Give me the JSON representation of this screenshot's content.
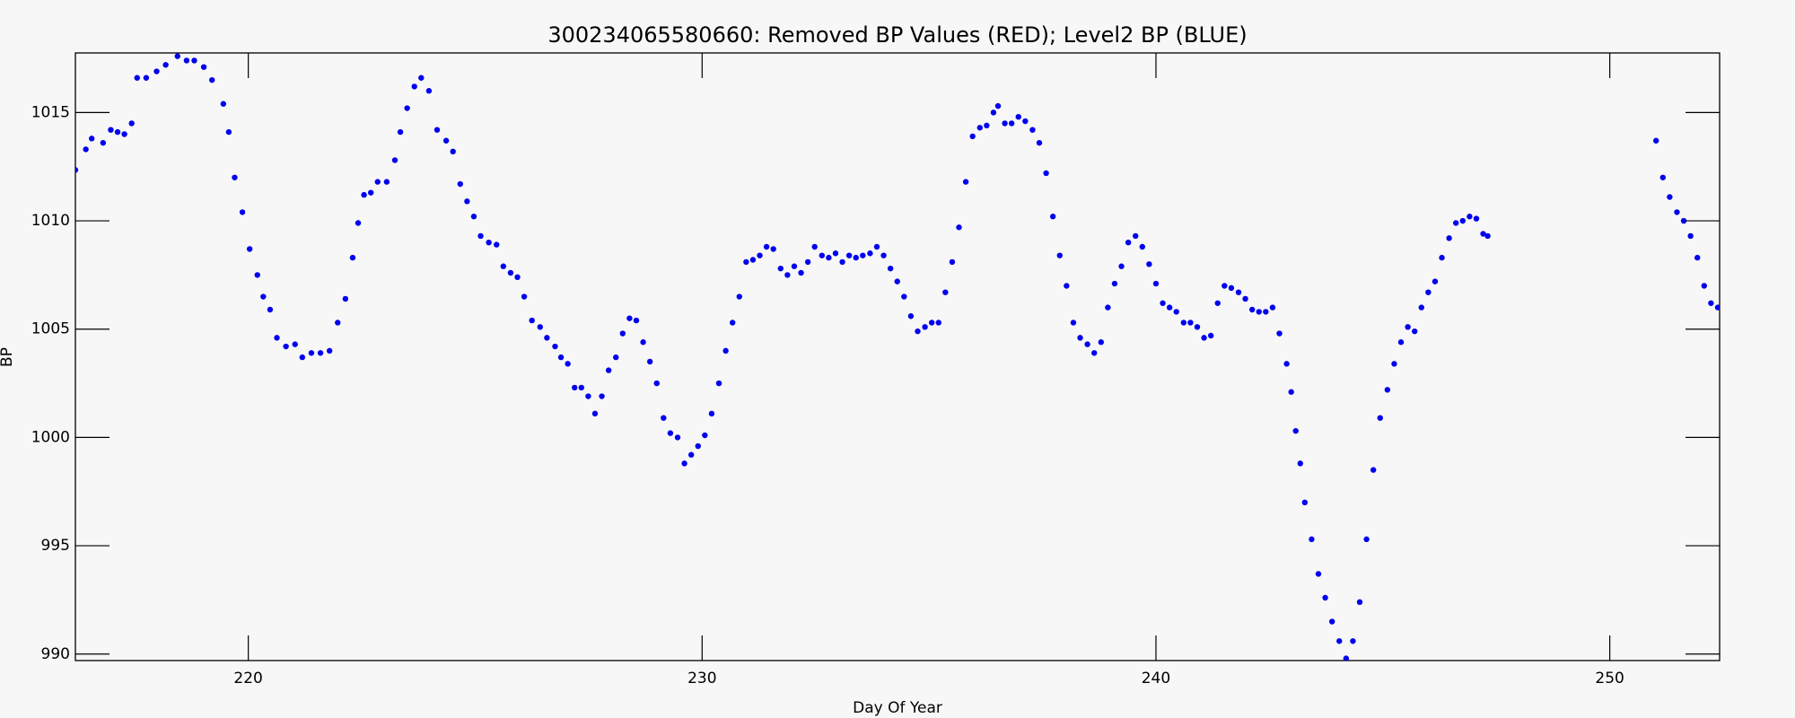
{
  "chart_data": {
    "type": "scatter",
    "title": "300234065580660: Removed BP Values (RED); Level2 BP (BLUE)",
    "x_label": "Day Of Year",
    "y_label": "BP",
    "color": "#0000ee",
    "xlim": [
      216.19,
      252.42
    ],
    "ylim": [
      989.7,
      1017.75
    ],
    "xticks": [
      220,
      230,
      240,
      250
    ],
    "yticks": [
      990,
      995,
      1000,
      1005,
      1010,
      1015
    ],
    "x": [
      216.19,
      216.42,
      216.55,
      216.8,
      216.97,
      217.12,
      217.27,
      217.43,
      217.55,
      217.75,
      217.98,
      218.18,
      218.44,
      218.64,
      218.81,
      219.02,
      219.2,
      219.45,
      219.57,
      219.7,
      219.87,
      220.03,
      220.2,
      220.33,
      220.48,
      220.63,
      220.83,
      221.03,
      221.19,
      221.39,
      221.59,
      221.79,
      221.97,
      222.14,
      222.3,
      222.42,
      222.55,
      222.7,
      222.85,
      223.05,
      223.23,
      223.35,
      223.5,
      223.66,
      223.81,
      223.98,
      224.16,
      224.36,
      224.51,
      224.67,
      224.82,
      224.97,
      225.12,
      225.3,
      225.47,
      225.62,
      225.78,
      225.93,
      226.08,
      226.25,
      226.43,
      226.58,
      226.76,
      226.89,
      227.04,
      227.19,
      227.34,
      227.49,
      227.64,
      227.79,
      227.94,
      228.1,
      228.25,
      228.4,
      228.55,
      228.7,
      228.85,
      229.0,
      229.15,
      229.3,
      229.46,
      229.61,
      229.76,
      229.91,
      230.06,
      230.21,
      230.37,
      230.52,
      230.67,
      230.82,
      230.97,
      231.12,
      231.27,
      231.42,
      231.57,
      231.73,
      231.88,
      232.03,
      232.18,
      232.33,
      232.48,
      232.64,
      232.79,
      232.94,
      233.09,
      233.24,
      233.39,
      233.54,
      233.7,
      233.85,
      234.0,
      234.15,
      234.3,
      234.45,
      234.6,
      234.75,
      234.91,
      235.06,
      235.21,
      235.36,
      235.51,
      235.66,
      235.81,
      235.96,
      236.12,
      236.27,
      236.42,
      236.52,
      236.67,
      236.82,
      236.97,
      237.12,
      237.28,
      237.43,
      237.58,
      237.73,
      237.88,
      238.03,
      238.18,
      238.33,
      238.49,
      238.64,
      238.79,
      238.94,
      239.09,
      239.24,
      239.39,
      239.55,
      239.7,
      239.85,
      240.0,
      240.15,
      240.3,
      240.45,
      240.61,
      240.76,
      240.91,
      241.06,
      241.21,
      241.36,
      241.51,
      241.66,
      241.82,
      241.97,
      242.12,
      242.27,
      242.42,
      242.57,
      242.72,
      242.88,
      242.98,
      243.08,
      243.18,
      243.28,
      243.43,
      243.58,
      243.73,
      243.88,
      244.04,
      244.19,
      244.34,
      244.49,
      244.64,
      244.79,
      244.94,
      245.1,
      245.25,
      245.4,
      245.55,
      245.7,
      245.85,
      246.0,
      246.15,
      246.3,
      246.46,
      246.61,
      246.76,
      246.91,
      247.06,
      247.21,
      247.31,
      251.02,
      251.17,
      251.32,
      251.48,
      251.63,
      251.78,
      251.93,
      252.08,
      252.23,
      252.38
    ],
    "values": [
      1012.35,
      1013.3,
      1013.8,
      1013.6,
      1014.2,
      1014.1,
      1014.0,
      1014.5,
      1016.6,
      1016.6,
      1016.9,
      1017.2,
      1017.6,
      1017.4,
      1017.4,
      1017.1,
      1016.5,
      1015.4,
      1014.1,
      1012.0,
      1010.4,
      1008.7,
      1007.5,
      1006.5,
      1005.9,
      1004.6,
      1004.2,
      1004.3,
      1003.7,
      1003.9,
      1003.9,
      1004.0,
      1005.3,
      1006.4,
      1008.3,
      1009.9,
      1011.2,
      1011.3,
      1011.8,
      1011.8,
      1012.8,
      1014.1,
      1015.2,
      1016.2,
      1016.6,
      1016.0,
      1014.2,
      1013.7,
      1013.2,
      1011.7,
      1010.9,
      1010.2,
      1009.3,
      1009.0,
      1008.9,
      1007.9,
      1007.6,
      1007.4,
      1006.5,
      1005.4,
      1005.1,
      1004.6,
      1004.2,
      1003.7,
      1003.4,
      1002.3,
      1002.3,
      1001.9,
      1001.1,
      1001.9,
      1003.1,
      1003.7,
      1004.8,
      1005.5,
      1005.4,
      1004.4,
      1003.5,
      1002.5,
      1000.9,
      1000.2,
      1000.0,
      998.8,
      999.2,
      999.6,
      1000.1,
      1001.1,
      1002.5,
      1004.0,
      1005.3,
      1006.5,
      1008.1,
      1008.2,
      1008.4,
      1008.8,
      1008.7,
      1007.8,
      1007.5,
      1007.9,
      1007.6,
      1008.1,
      1008.8,
      1008.4,
      1008.3,
      1008.5,
      1008.1,
      1008.4,
      1008.3,
      1008.4,
      1008.5,
      1008.8,
      1008.4,
      1007.8,
      1007.2,
      1006.5,
      1005.6,
      1004.9,
      1005.1,
      1005.3,
      1005.3,
      1006.7,
      1008.1,
      1009.7,
      1011.8,
      1013.9,
      1014.3,
      1014.4,
      1015.0,
      1015.3,
      1014.5,
      1014.5,
      1014.8,
      1014.6,
      1014.2,
      1013.6,
      1012.2,
      1010.2,
      1008.4,
      1007.0,
      1005.3,
      1004.6,
      1004.3,
      1003.9,
      1004.4,
      1006.0,
      1007.1,
      1007.9,
      1009.0,
      1009.3,
      1008.8,
      1008.0,
      1007.1,
      1006.2,
      1006.0,
      1005.8,
      1005.3,
      1005.3,
      1005.1,
      1004.6,
      1004.7,
      1006.2,
      1007.0,
      1006.9,
      1006.7,
      1006.4,
      1005.9,
      1005.8,
      1005.8,
      1006.0,
      1004.8,
      1003.4,
      1002.1,
      1000.3,
      998.8,
      997.0,
      995.3,
      993.7,
      992.6,
      991.5,
      990.6,
      989.8,
      990.6,
      992.4,
      995.3,
      998.5,
      1000.9,
      1002.2,
      1003.4,
      1004.4,
      1005.1,
      1004.9,
      1006.0,
      1006.7,
      1007.2,
      1008.3,
      1009.2,
      1009.9,
      1010.0,
      1010.2,
      1010.1,
      1009.4,
      1009.3,
      1013.7,
      1012.0,
      1011.1,
      1010.4,
      1010.0,
      1009.3,
      1008.3,
      1007.0,
      1006.2,
      1006.0
    ]
  }
}
